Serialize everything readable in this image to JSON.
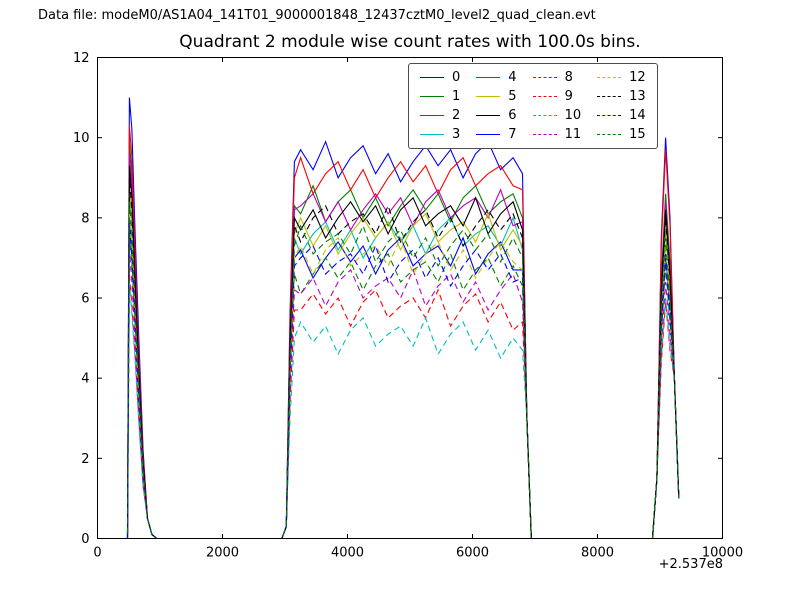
{
  "header": {
    "label": "Data file: modeM0/AS1A04_141T01_9000001848_12437cztM0_level2_quad_clean.evt"
  },
  "chart_data": {
    "type": "line",
    "title": "Quadrant 2 module wise count rates with 100.0s bins.",
    "xlabel": "",
    "ylabel": "",
    "xlim": [
      0,
      10000
    ],
    "ylim": [
      0,
      12
    ],
    "xticks": [
      0,
      2000,
      4000,
      6000,
      8000,
      10000
    ],
    "xtick_labels": [
      "0",
      "2000",
      "4000",
      "6000",
      "8000",
      "10000"
    ],
    "yticks": [
      0,
      2,
      4,
      6,
      8,
      10,
      12
    ],
    "ytick_labels": [
      "0",
      "2",
      "4",
      "6",
      "8",
      "10",
      "12"
    ],
    "x_offset_label": "+2.537e8",
    "grid": false,
    "legend_position": "upper center",
    "legend_columns": 4,
    "x": [
      400,
      480,
      510,
      550,
      600,
      660,
      730,
      800,
      870,
      950,
      1600,
      2400,
      2950,
      3020,
      3080,
      3150,
      3250,
      3450,
      3650,
      3850,
      4050,
      4250,
      4450,
      4650,
      4850,
      5050,
      5250,
      5450,
      5650,
      5850,
      6050,
      6250,
      6450,
      6650,
      6800,
      6870,
      6940,
      7400,
      8200,
      8880,
      8950,
      9020,
      9090,
      9160,
      9230,
      9300
    ],
    "series": [
      {
        "name": "0",
        "color": "#0000ff",
        "linestyle": "solid",
        "values": [
          0,
          0,
          11.0,
          10.2,
          7.7,
          5.0,
          2.2,
          0.5,
          0.1,
          0,
          0,
          0,
          0,
          0.3,
          5.6,
          9.4,
          9.7,
          9.2,
          9.9,
          9.0,
          9.5,
          9.8,
          9.1,
          9.6,
          8.9,
          9.4,
          9.8,
          9.3,
          9.7,
          9.0,
          9.6,
          9.9,
          9.2,
          9.5,
          9.1,
          3.0,
          0,
          0,
          0,
          0,
          1.5,
          7.5,
          10.0,
          8.0,
          4.0,
          1.0
        ]
      },
      {
        "name": "1",
        "color": "#008000",
        "linestyle": "solid",
        "values": [
          0,
          0,
          9.9,
          9.1,
          6.9,
          4.5,
          2.0,
          0.5,
          0.1,
          0,
          0,
          0,
          0,
          0.3,
          5.0,
          8.3,
          8.1,
          8.8,
          7.9,
          8.4,
          8.7,
          8.0,
          8.5,
          7.8,
          8.3,
          8.7,
          8.2,
          8.6,
          7.9,
          8.5,
          8.8,
          8.1,
          8.4,
          8.6,
          8.0,
          3.0,
          0,
          0,
          0,
          0,
          1.5,
          6.5,
          8.6,
          6.9,
          4.0,
          1.0
        ]
      },
      {
        "name": "2",
        "color": "#ff0000",
        "linestyle": "solid",
        "values": [
          0,
          0,
          10.3,
          9.5,
          7.2,
          4.6,
          2.1,
          0.5,
          0.1,
          0,
          0,
          0,
          0,
          0.3,
          5.4,
          9.0,
          9.5,
          8.6,
          9.1,
          9.4,
          8.7,
          9.2,
          8.5,
          9.0,
          9.4,
          8.9,
          9.3,
          8.6,
          9.2,
          9.5,
          8.8,
          9.1,
          9.3,
          8.8,
          8.7,
          3.0,
          0,
          0,
          0,
          0,
          1.5,
          7.3,
          9.7,
          7.8,
          4.0,
          1.0
        ]
      },
      {
        "name": "3",
        "color": "#00bfbf",
        "linestyle": "solid",
        "values": [
          0,
          0,
          8.6,
          7.8,
          6.0,
          3.9,
          1.7,
          0.5,
          0.1,
          0,
          0,
          0,
          0,
          0.3,
          4.5,
          7.5,
          7.1,
          7.6,
          7.9,
          7.2,
          7.7,
          7.0,
          7.5,
          7.9,
          7.4,
          7.8,
          7.1,
          7.7,
          8.0,
          7.3,
          7.6,
          7.8,
          7.3,
          8.0,
          7.2,
          3.0,
          0,
          0,
          0,
          0,
          1.5,
          5.8,
          7.7,
          6.2,
          4.0,
          1.0
        ]
      },
      {
        "name": "4",
        "color": "#bf00bf",
        "linestyle": "solid",
        "values": [
          0,
          0,
          9.6,
          8.8,
          6.7,
          4.3,
          1.9,
          0.5,
          0.1,
          0,
          0,
          0,
          0,
          0.3,
          4.9,
          8.2,
          8.3,
          8.6,
          7.9,
          8.4,
          7.7,
          8.2,
          8.6,
          8.1,
          8.5,
          7.8,
          8.4,
          8.7,
          8.0,
          8.3,
          8.5,
          8.0,
          8.7,
          7.8,
          7.9,
          3.0,
          0,
          0,
          0,
          0,
          1.5,
          6.3,
          8.4,
          6.7,
          4.0,
          1.0
        ]
      },
      {
        "name": "5",
        "color": "#bfbf00",
        "linestyle": "solid",
        "values": [
          0,
          0,
          8.8,
          8.0,
          6.2,
          4.0,
          1.8,
          0.5,
          0.1,
          0,
          0,
          0,
          0,
          0.3,
          4.6,
          7.6,
          8.0,
          7.3,
          7.8,
          7.1,
          7.6,
          8.0,
          7.5,
          7.9,
          7.2,
          7.8,
          8.1,
          7.4,
          7.7,
          7.9,
          7.4,
          8.1,
          7.2,
          7.7,
          7.3,
          3.0,
          0,
          0,
          0,
          0,
          1.5,
          5.9,
          7.8,
          6.2,
          4.0,
          1.0
        ]
      },
      {
        "name": "6",
        "color": "#000000",
        "linestyle": "solid",
        "values": [
          0,
          0,
          9.3,
          8.5,
          6.5,
          4.2,
          1.9,
          0.5,
          0.1,
          0,
          0,
          0,
          0,
          0.3,
          4.8,
          8.0,
          7.7,
          8.2,
          7.5,
          8.0,
          8.4,
          7.9,
          8.3,
          7.6,
          8.2,
          8.5,
          7.8,
          8.1,
          8.3,
          7.8,
          8.5,
          7.6,
          8.1,
          8.4,
          7.7,
          3.0,
          0,
          0,
          0,
          0,
          1.5,
          6.2,
          8.2,
          6.6,
          4.0,
          1.0
        ]
      },
      {
        "name": "7",
        "color": "#0000ff",
        "linestyle": "solid",
        "values": [
          0,
          0,
          8.0,
          7.2,
          5.6,
          3.6,
          1.6,
          0.5,
          0.1,
          0,
          0,
          0,
          0,
          0.3,
          4.2,
          7.0,
          7.2,
          6.5,
          7.0,
          7.4,
          6.9,
          7.3,
          6.6,
          7.2,
          7.5,
          6.8,
          7.1,
          7.3,
          6.8,
          7.5,
          6.6,
          7.1,
          7.4,
          6.7,
          6.7,
          3.0,
          0,
          0,
          0,
          0,
          1.5,
          5.3,
          7.1,
          5.7,
          4.0,
          1.0
        ]
      },
      {
        "name": "8",
        "color": "#008000",
        "linestyle": "dashed",
        "values": [
          0,
          0,
          7.6,
          6.8,
          5.3,
          3.4,
          1.5,
          0.5,
          0.1,
          0,
          0,
          0,
          0,
          0.3,
          4.0,
          6.6,
          6.1,
          6.6,
          7.0,
          6.5,
          6.9,
          6.2,
          6.8,
          7.1,
          6.4,
          6.7,
          6.9,
          6.4,
          7.1,
          6.2,
          6.7,
          7.0,
          6.3,
          6.8,
          6.3,
          3.0,
          0,
          0,
          0,
          0,
          1.5,
          5.1,
          6.8,
          5.4,
          4.0,
          1.0
        ]
      },
      {
        "name": "9",
        "color": "#ff0000",
        "linestyle": "dashed",
        "values": [
          0,
          0,
          6.6,
          5.8,
          4.6,
          3.0,
          1.3,
          0.5,
          0.1,
          0,
          0,
          0,
          0,
          0.3,
          3.4,
          5.7,
          5.7,
          6.1,
          5.6,
          6.0,
          5.3,
          5.9,
          6.2,
          5.5,
          5.8,
          6.0,
          5.5,
          6.2,
          5.3,
          5.8,
          6.1,
          5.4,
          5.9,
          5.2,
          5.4,
          3.0,
          0,
          0,
          0,
          0,
          1.5,
          4.4,
          5.9,
          4.7,
          4.0,
          1.0
        ]
      },
      {
        "name": "10",
        "color": "#00bfbf",
        "linestyle": "dashed",
        "values": [
          0,
          0,
          6.4,
          5.6,
          4.5,
          2.9,
          1.3,
          0.5,
          0.1,
          0,
          0,
          0,
          0,
          0.3,
          3.0,
          5.0,
          5.4,
          4.9,
          5.3,
          4.6,
          5.2,
          5.5,
          4.8,
          5.1,
          5.3,
          4.8,
          5.5,
          4.6,
          5.1,
          5.4,
          4.7,
          5.2,
          4.5,
          5.0,
          4.7,
          3.0,
          0,
          0,
          0,
          0,
          1.5,
          4.5,
          6.0,
          4.8,
          4.0,
          1.0
        ]
      },
      {
        "name": "11",
        "color": "#bf00bf",
        "linestyle": "dashed",
        "values": [
          0,
          0,
          7.2,
          6.4,
          5.0,
          3.2,
          1.4,
          0.5,
          0.1,
          0,
          0,
          0,
          0,
          0.3,
          3.7,
          6.2,
          6.1,
          6.5,
          5.8,
          6.4,
          6.7,
          6.0,
          6.3,
          6.5,
          6.0,
          6.7,
          5.8,
          6.3,
          6.6,
          5.9,
          6.4,
          5.7,
          6.2,
          6.6,
          5.9,
          3.0,
          0,
          0,
          0,
          0,
          1.5,
          4.8,
          6.4,
          5.1,
          4.0,
          1.0
        ]
      },
      {
        "name": "12",
        "color": "#bfbf00",
        "linestyle": "dashed",
        "values": [
          0,
          0,
          8.1,
          7.3,
          5.7,
          3.6,
          1.6,
          0.5,
          0.1,
          0,
          0,
          0,
          0,
          0.3,
          4.2,
          7.0,
          7.3,
          6.6,
          7.2,
          7.5,
          6.8,
          7.1,
          7.3,
          6.8,
          7.5,
          6.6,
          7.1,
          7.4,
          6.7,
          7.2,
          6.5,
          7.0,
          7.4,
          6.9,
          6.7,
          3.0,
          0,
          0,
          0,
          0,
          1.5,
          5.4,
          7.2,
          5.8,
          4.0,
          1.0
        ]
      },
      {
        "name": "13",
        "color": "#000000",
        "linestyle": "dashed",
        "values": [
          0,
          0,
          9.0,
          8.2,
          6.3,
          4.1,
          1.8,
          0.5,
          0.1,
          0,
          0,
          0,
          0,
          0.3,
          4.7,
          7.8,
          7.4,
          8.0,
          8.3,
          7.6,
          7.9,
          8.1,
          7.6,
          8.3,
          7.4,
          7.9,
          8.2,
          7.5,
          8.0,
          7.3,
          7.8,
          8.2,
          7.7,
          8.1,
          7.5,
          3.0,
          0,
          0,
          0,
          0,
          1.5,
          6.0,
          8.0,
          6.4,
          4.0,
          1.0
        ]
      },
      {
        "name": "14",
        "color": "#0000ff",
        "linestyle": "dashed",
        "values": [
          0,
          0,
          7.8,
          7.0,
          5.5,
          3.5,
          1.6,
          0.5,
          0.1,
          0,
          0,
          0,
          0,
          0.3,
          4.1,
          6.8,
          7.0,
          7.3,
          6.6,
          6.9,
          7.1,
          6.6,
          7.3,
          6.4,
          6.9,
          7.2,
          6.5,
          7.0,
          6.3,
          6.8,
          7.2,
          6.7,
          7.1,
          6.4,
          6.5,
          3.0,
          0,
          0,
          0,
          0,
          1.5,
          5.3,
          7.0,
          5.6,
          4.0,
          1.0
        ]
      },
      {
        "name": "15",
        "color": "#008000",
        "linestyle": "dashed",
        "values": [
          0,
          0,
          8.4,
          7.6,
          5.9,
          3.8,
          1.7,
          0.5,
          0.1,
          0,
          0,
          0,
          0,
          0.3,
          4.4,
          7.3,
          7.8,
          7.1,
          7.4,
          7.6,
          7.1,
          7.8,
          6.9,
          7.4,
          7.7,
          7.0,
          7.5,
          6.8,
          7.3,
          7.7,
          7.2,
          7.6,
          6.9,
          7.5,
          7.0,
          3.0,
          0,
          0,
          0,
          0,
          1.5,
          5.7,
          7.5,
          6.0,
          4.0,
          1.0
        ]
      }
    ]
  }
}
